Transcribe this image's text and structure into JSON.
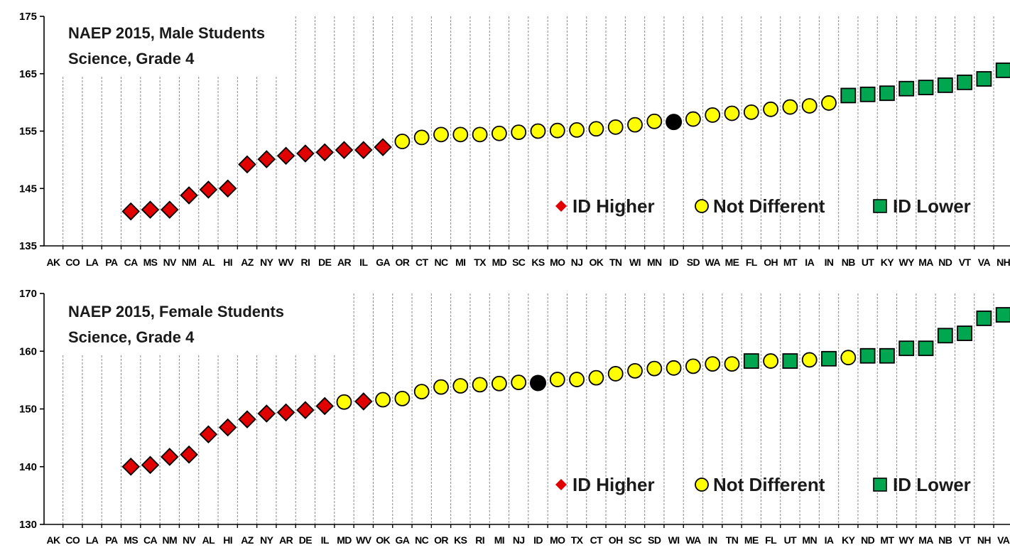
{
  "chart_data": [
    {
      "type": "scatter",
      "title": "NAEP 2015, Male Students",
      "subtitle": "Science, Grade 4",
      "ylim": [
        135,
        175
      ],
      "yticks": [
        135,
        145,
        155,
        165,
        175
      ],
      "grid": "vertical dashed lines per state",
      "legend": {
        "position": "bottom-right",
        "items": [
          {
            "label": "ID Higher",
            "marker": "diamond",
            "color": "#e00000"
          },
          {
            "label": "Not Different",
            "marker": "circle",
            "color": "#ffff00"
          },
          {
            "label": "ID Lower",
            "marker": "square",
            "color": "#00a650"
          }
        ]
      },
      "categories": [
        "AK",
        "CO",
        "LA",
        "PA",
        "CA",
        "MS",
        "NV",
        "NM",
        "AL",
        "HI",
        "AZ",
        "NY",
        "WV",
        "RI",
        "DE",
        "AR",
        "IL",
        "GA",
        "OR",
        "CT",
        "NC",
        "MI",
        "TX",
        "MD",
        "SC",
        "KS",
        "MO",
        "NJ",
        "OK",
        "TN",
        "WI",
        "MN",
        "ID",
        "SD",
        "WA",
        "ME",
        "FL",
        "OH",
        "MT",
        "IA",
        "IN",
        "NB",
        "UT",
        "KY",
        "WY",
        "MA",
        "ND",
        "VT",
        "VA",
        "NH"
      ],
      "points": [
        {
          "state": "CA",
          "value": 141,
          "status": "higher"
        },
        {
          "state": "MS",
          "value": 141.3,
          "status": "higher"
        },
        {
          "state": "NV",
          "value": 141.3,
          "status": "higher"
        },
        {
          "state": "NM",
          "value": 143.8,
          "status": "higher"
        },
        {
          "state": "AL",
          "value": 144.8,
          "status": "higher"
        },
        {
          "state": "HI",
          "value": 145,
          "status": "higher"
        },
        {
          "state": "AZ",
          "value": 149.2,
          "status": "higher"
        },
        {
          "state": "NY",
          "value": 150.1,
          "status": "higher"
        },
        {
          "state": "WV",
          "value": 150.7,
          "status": "higher"
        },
        {
          "state": "RI",
          "value": 151.1,
          "status": "higher"
        },
        {
          "state": "DE",
          "value": 151.3,
          "status": "higher"
        },
        {
          "state": "AR",
          "value": 151.7,
          "status": "higher"
        },
        {
          "state": "IL",
          "value": 151.7,
          "status": "higher"
        },
        {
          "state": "GA",
          "value": 152.2,
          "status": "higher"
        },
        {
          "state": "OR",
          "value": 153.2,
          "status": "same"
        },
        {
          "state": "CT",
          "value": 153.9,
          "status": "same"
        },
        {
          "state": "NC",
          "value": 154.4,
          "status": "same"
        },
        {
          "state": "MI",
          "value": 154.4,
          "status": "same"
        },
        {
          "state": "TX",
          "value": 154.4,
          "status": "same"
        },
        {
          "state": "MD",
          "value": 154.6,
          "status": "same"
        },
        {
          "state": "SC",
          "value": 154.8,
          "status": "same"
        },
        {
          "state": "KS",
          "value": 155,
          "status": "same"
        },
        {
          "state": "MO",
          "value": 155.1,
          "status": "same"
        },
        {
          "state": "NJ",
          "value": 155.2,
          "status": "same"
        },
        {
          "state": "OK",
          "value": 155.4,
          "status": "same"
        },
        {
          "state": "TN",
          "value": 155.7,
          "status": "same"
        },
        {
          "state": "WI",
          "value": 156.1,
          "status": "same"
        },
        {
          "state": "MN",
          "value": 156.7,
          "status": "same"
        },
        {
          "state": "ID",
          "value": 156.6,
          "status": "reference"
        },
        {
          "state": "SD",
          "value": 157.1,
          "status": "same"
        },
        {
          "state": "WA",
          "value": 157.8,
          "status": "same"
        },
        {
          "state": "ME",
          "value": 158.1,
          "status": "same"
        },
        {
          "state": "FL",
          "value": 158.3,
          "status": "same"
        },
        {
          "state": "OH",
          "value": 158.8,
          "status": "same"
        },
        {
          "state": "MT",
          "value": 159.2,
          "status": "same"
        },
        {
          "state": "IA",
          "value": 159.4,
          "status": "same"
        },
        {
          "state": "IN",
          "value": 159.9,
          "status": "same"
        },
        {
          "state": "NB",
          "value": 161.2,
          "status": "lower"
        },
        {
          "state": "UT",
          "value": 161.4,
          "status": "lower"
        },
        {
          "state": "KY",
          "value": 161.6,
          "status": "lower"
        },
        {
          "state": "WY",
          "value": 162.4,
          "status": "lower"
        },
        {
          "state": "MA",
          "value": 162.6,
          "status": "lower"
        },
        {
          "state": "ND",
          "value": 163,
          "status": "lower"
        },
        {
          "state": "VT",
          "value": 163.5,
          "status": "lower"
        },
        {
          "state": "VA",
          "value": 164.1,
          "status": "lower"
        },
        {
          "state": "NH",
          "value": 165.6,
          "status": "lower"
        }
      ]
    },
    {
      "type": "scatter",
      "title": "NAEP 2015, Female Students",
      "subtitle": "Science, Grade 4",
      "ylim": [
        130,
        170
      ],
      "yticks": [
        130,
        140,
        150,
        160,
        170
      ],
      "grid": "vertical dashed lines per state",
      "legend": {
        "position": "bottom-right",
        "items": [
          {
            "label": "ID Higher",
            "marker": "diamond",
            "color": "#e00000"
          },
          {
            "label": "Not Different",
            "marker": "circle",
            "color": "#ffff00"
          },
          {
            "label": "ID Lower",
            "marker": "square",
            "color": "#00a650"
          }
        ]
      },
      "categories": [
        "AK",
        "CO",
        "LA",
        "PA",
        "MS",
        "CA",
        "NM",
        "NV",
        "AL",
        "HI",
        "AZ",
        "NY",
        "AR",
        "DE",
        "IL",
        "MD",
        "WV",
        "OK",
        "GA",
        "NC",
        "OR",
        "KS",
        "RI",
        "MI",
        "NJ",
        "ID",
        "MO",
        "TX",
        "CT",
        "OH",
        "SC",
        "SD",
        "WI",
        "WA",
        "IN",
        "TN",
        "ME",
        "FL",
        "UT",
        "MN",
        "IA",
        "KY",
        "ND",
        "MT",
        "WY",
        "MA",
        "NB",
        "VT",
        "NH",
        "VA"
      ],
      "points": [
        {
          "state": "MS",
          "value": 140,
          "status": "higher"
        },
        {
          "state": "CA",
          "value": 140.3,
          "status": "higher"
        },
        {
          "state": "NM",
          "value": 141.7,
          "status": "higher"
        },
        {
          "state": "NV",
          "value": 142.1,
          "status": "higher"
        },
        {
          "state": "AL",
          "value": 145.6,
          "status": "higher"
        },
        {
          "state": "HI",
          "value": 146.8,
          "status": "higher"
        },
        {
          "state": "AZ",
          "value": 148.2,
          "status": "higher"
        },
        {
          "state": "NY",
          "value": 149.2,
          "status": "higher"
        },
        {
          "state": "AR",
          "value": 149.4,
          "status": "higher"
        },
        {
          "state": "DE",
          "value": 149.8,
          "status": "higher"
        },
        {
          "state": "IL",
          "value": 150.5,
          "status": "higher"
        },
        {
          "state": "MD",
          "value": 151.2,
          "status": "same"
        },
        {
          "state": "WV",
          "value": 151.3,
          "status": "higher"
        },
        {
          "state": "OK",
          "value": 151.6,
          "status": "same"
        },
        {
          "state": "GA",
          "value": 151.8,
          "status": "same"
        },
        {
          "state": "NC",
          "value": 153,
          "status": "same"
        },
        {
          "state": "OR",
          "value": 153.8,
          "status": "same"
        },
        {
          "state": "KS",
          "value": 154,
          "status": "same"
        },
        {
          "state": "RI",
          "value": 154.2,
          "status": "same"
        },
        {
          "state": "MI",
          "value": 154.4,
          "status": "same"
        },
        {
          "state": "NJ",
          "value": 154.6,
          "status": "same"
        },
        {
          "state": "ID",
          "value": 154.5,
          "status": "reference"
        },
        {
          "state": "MO",
          "value": 155.1,
          "status": "same"
        },
        {
          "state": "TX",
          "value": 155.1,
          "status": "same"
        },
        {
          "state": "CT",
          "value": 155.4,
          "status": "same"
        },
        {
          "state": "OH",
          "value": 156.1,
          "status": "same"
        },
        {
          "state": "SC",
          "value": 156.6,
          "status": "same"
        },
        {
          "state": "SD",
          "value": 157,
          "status": "same"
        },
        {
          "state": "WI",
          "value": 157.1,
          "status": "same"
        },
        {
          "state": "WA",
          "value": 157.4,
          "status": "same"
        },
        {
          "state": "IN",
          "value": 157.8,
          "status": "same"
        },
        {
          "state": "TN",
          "value": 157.8,
          "status": "same"
        },
        {
          "state": "ME",
          "value": 158.3,
          "status": "lower"
        },
        {
          "state": "FL",
          "value": 158.3,
          "status": "same"
        },
        {
          "state": "UT",
          "value": 158.3,
          "status": "lower"
        },
        {
          "state": "MN",
          "value": 158.5,
          "status": "same"
        },
        {
          "state": "IA",
          "value": 158.7,
          "status": "lower"
        },
        {
          "state": "KY",
          "value": 158.9,
          "status": "same"
        },
        {
          "state": "ND",
          "value": 159.2,
          "status": "lower"
        },
        {
          "state": "MT",
          "value": 159.2,
          "status": "lower"
        },
        {
          "state": "WY",
          "value": 160.5,
          "status": "lower"
        },
        {
          "state": "MA",
          "value": 160.5,
          "status": "lower"
        },
        {
          "state": "NB",
          "value": 162.7,
          "status": "lower"
        },
        {
          "state": "VT",
          "value": 163.1,
          "status": "lower"
        },
        {
          "state": "NH",
          "value": 165.7,
          "status": "lower"
        },
        {
          "state": "VA",
          "value": 166.3,
          "status": "lower"
        }
      ]
    }
  ]
}
